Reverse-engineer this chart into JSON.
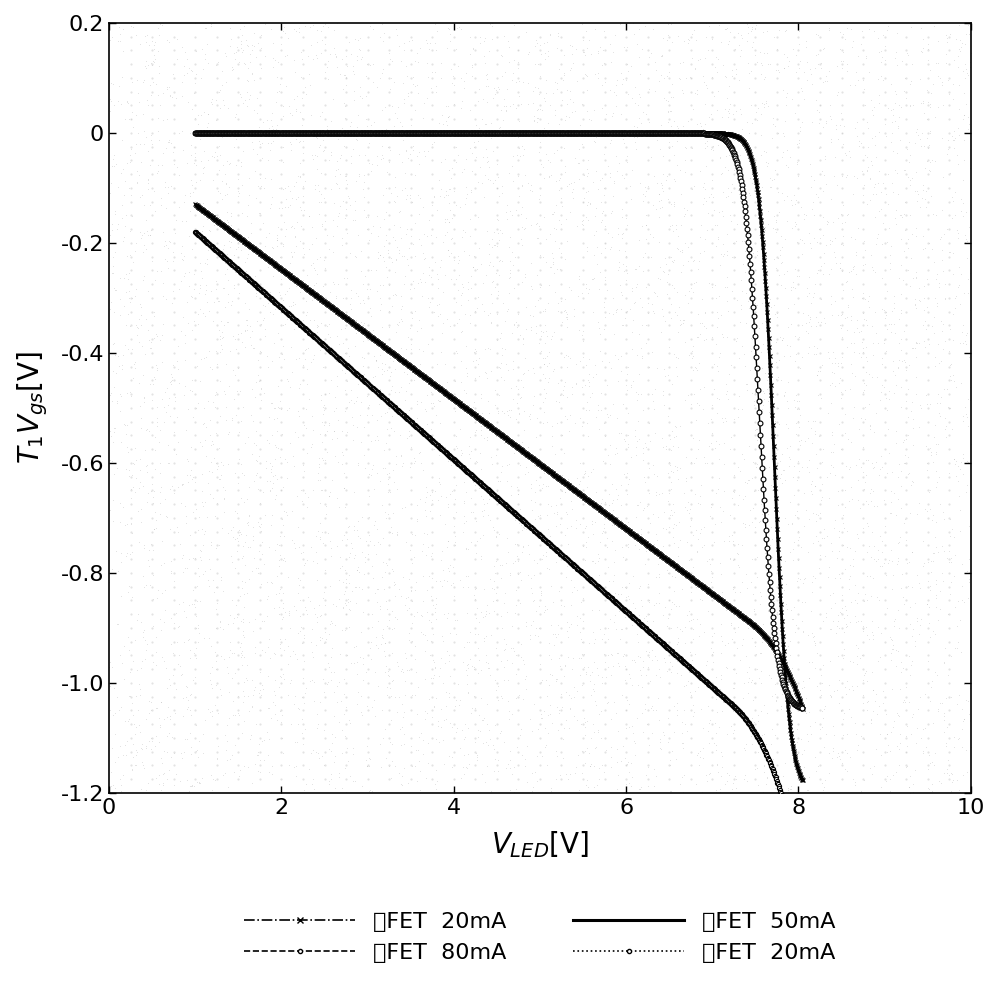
{
  "xlabel": "V$_\\mathregular{LED}$[V]",
  "ylabel": "T$_\\mathregular{1}$V$_\\mathregular{gs}$[V]",
  "xlim": [
    0,
    10
  ],
  "ylim": [
    -1.2,
    0.2
  ],
  "xticks": [
    0,
    2,
    4,
    6,
    8,
    10
  ],
  "yticks": [
    0.2,
    0,
    -0.2,
    -0.4,
    -0.6,
    -0.8,
    -1.0,
    -1.2
  ],
  "background_color": "#ffffff",
  "legend_labels": [
    "单FET  20mA",
    "单FET  80mA",
    "収FET  50mA",
    "収FET  20mA"
  ],
  "legend_labels_display": [
    "单FET  20mA",
    "单FET  80mA",
    "収FET  50mA",
    "収FET  20mA"
  ]
}
